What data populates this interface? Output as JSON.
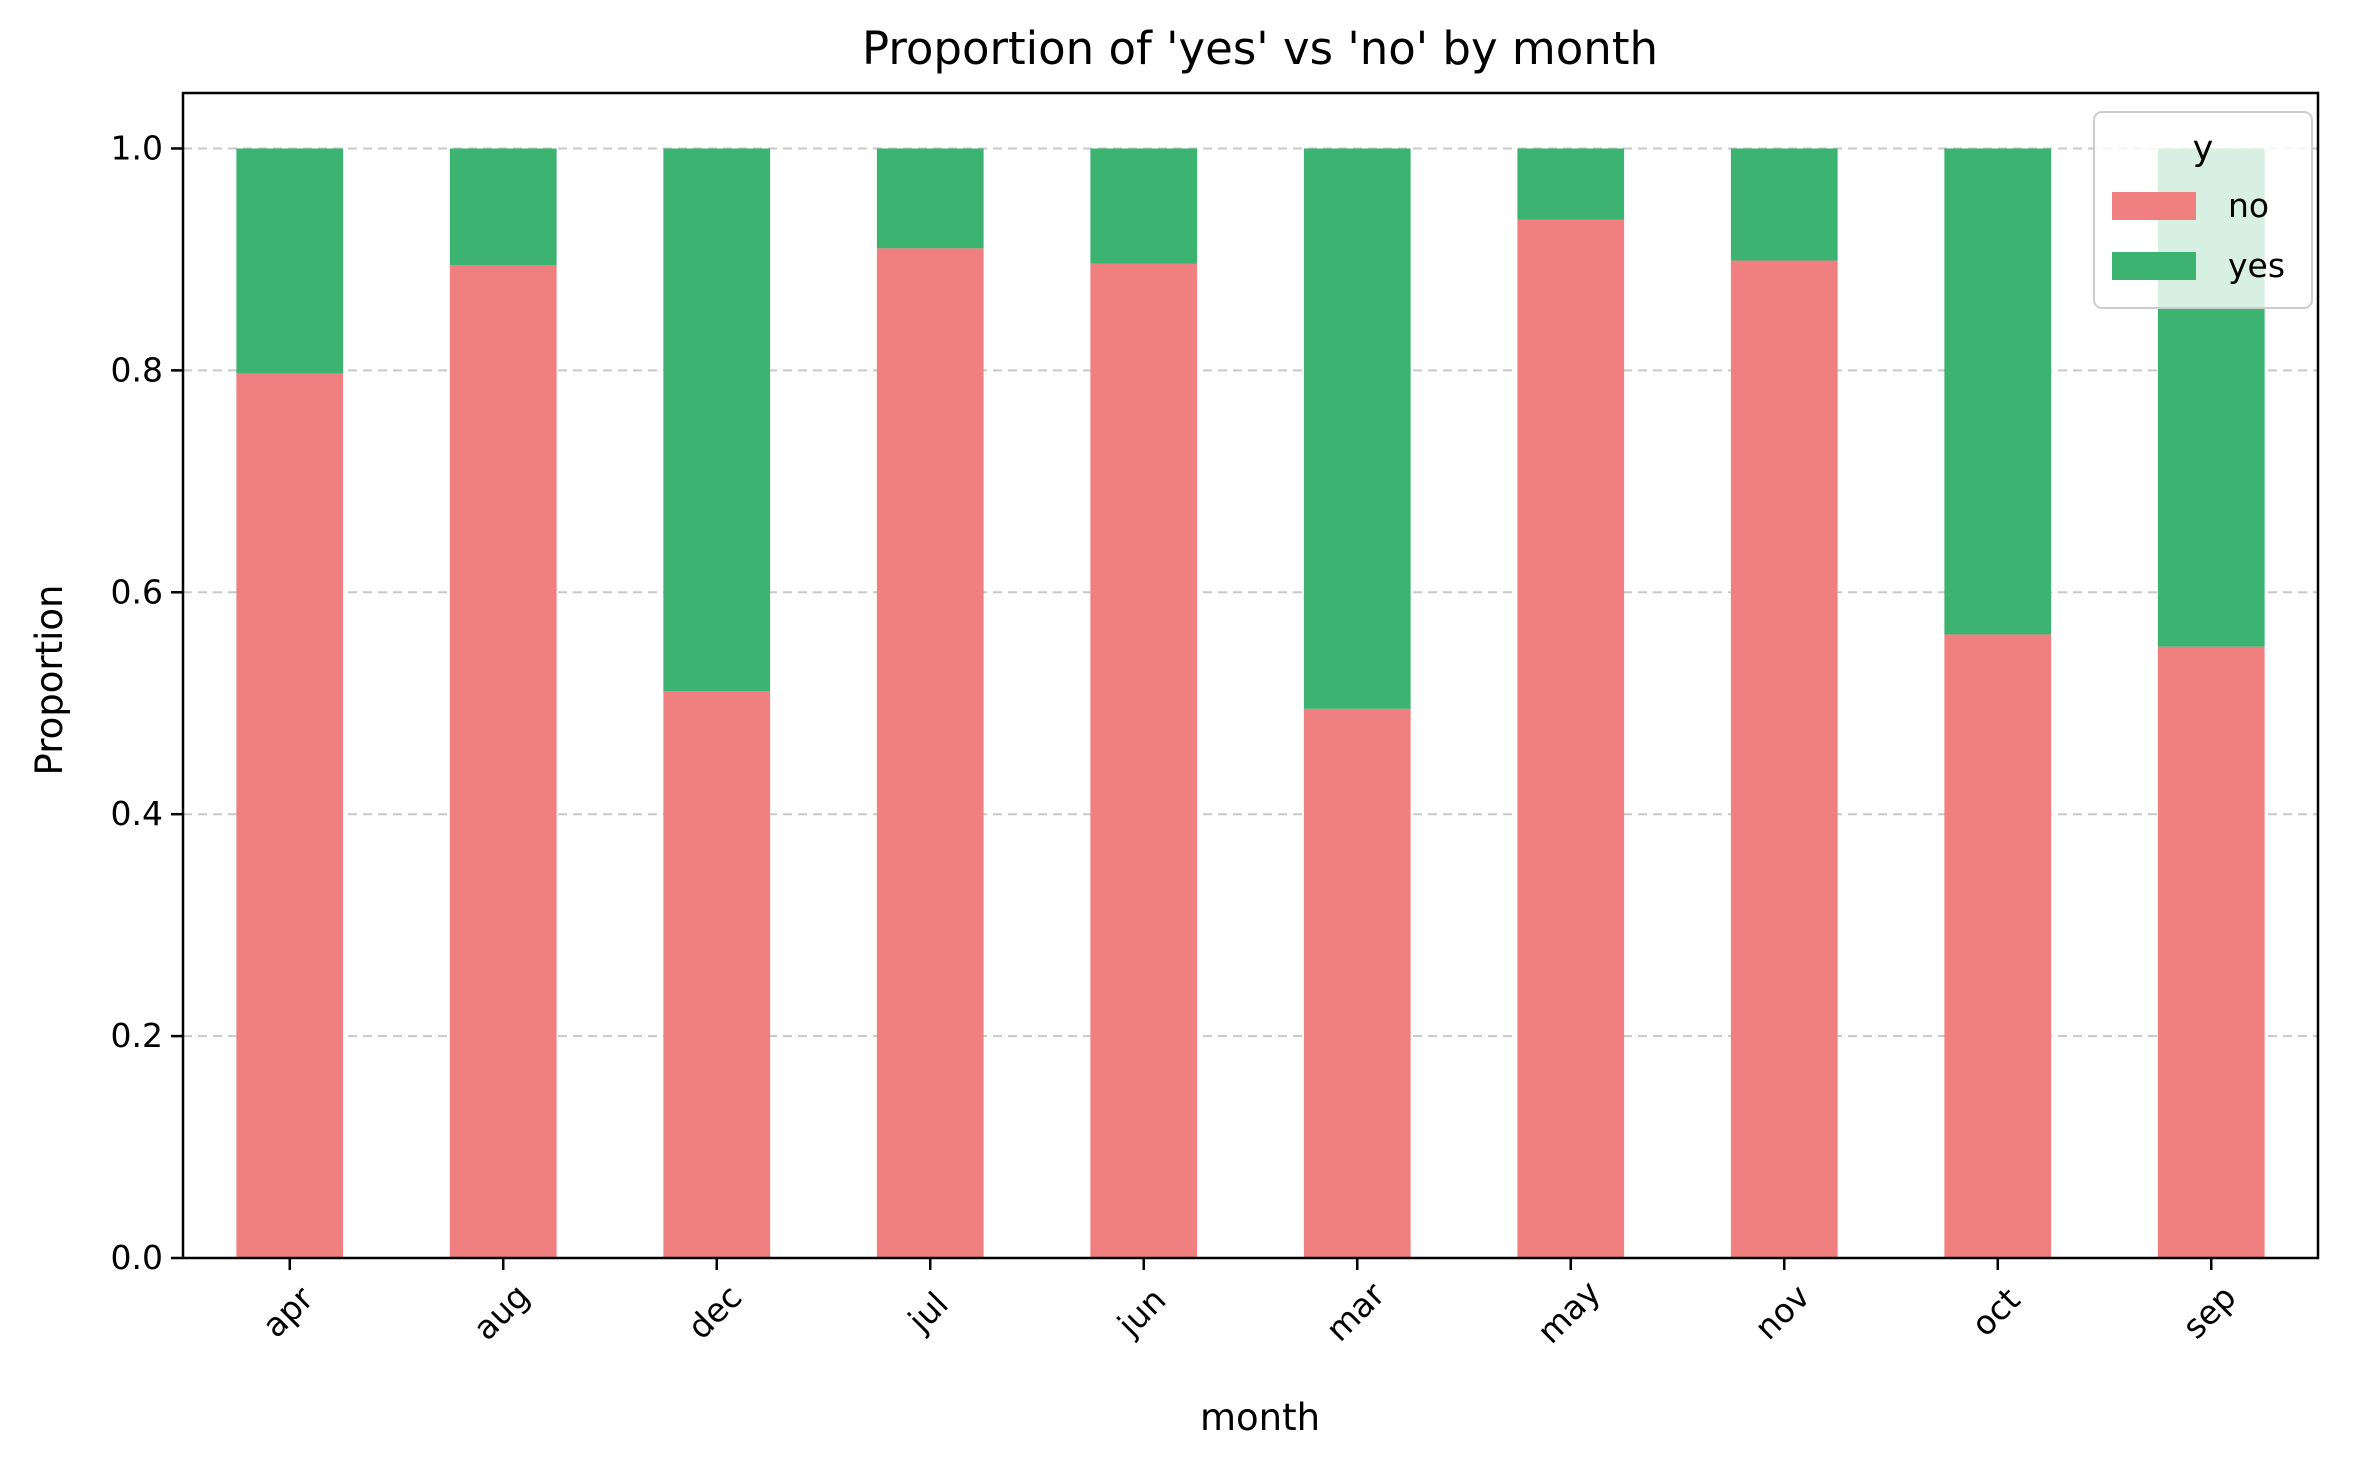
{
  "chart_data": {
    "type": "bar",
    "stacked": true,
    "title": "Proportion of 'yes' vs 'no' by month",
    "xlabel": "month",
    "ylabel": "Proportion",
    "ylim": [
      0,
      1.05
    ],
    "yticks": [
      "0.0",
      "0.2",
      "0.4",
      "0.6",
      "0.8",
      "1.0"
    ],
    "grid": "y dashed",
    "legend": {
      "title": "y",
      "placement": "top-right"
    },
    "categories": [
      "apr",
      "aug",
      "dec",
      "jul",
      "jun",
      "mar",
      "may",
      "nov",
      "oct",
      "sep"
    ],
    "series": [
      {
        "name": "no",
        "color": "#F08080",
        "values": [
          0.797,
          0.895,
          0.511,
          0.91,
          0.896,
          0.495,
          0.936,
          0.899,
          0.562,
          0.551
        ]
      },
      {
        "name": "yes",
        "color": "#3CB371",
        "values": [
          0.203,
          0.105,
          0.489,
          0.09,
          0.104,
          0.505,
          0.064,
          0.101,
          0.438,
          0.449
        ]
      }
    ]
  }
}
